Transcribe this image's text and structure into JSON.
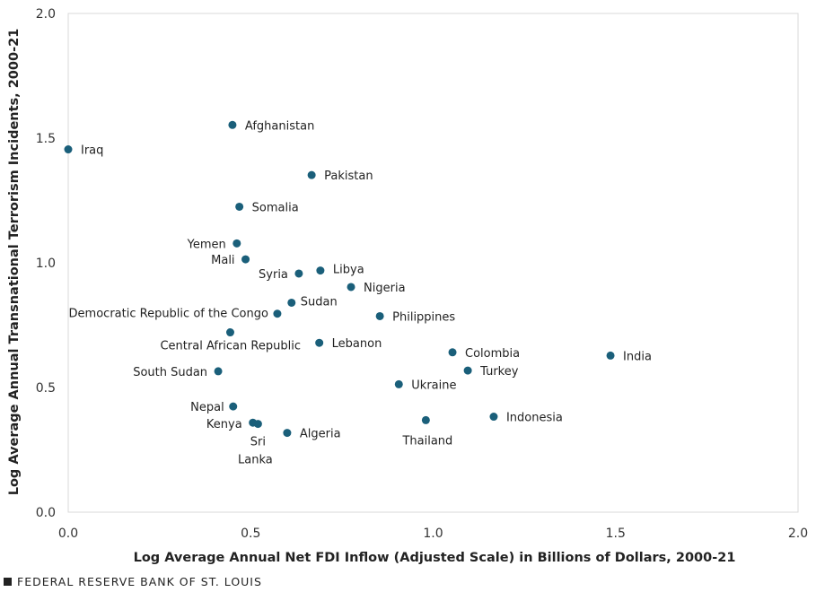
{
  "chart_data": {
    "type": "scatter",
    "xlabel": "Log Average Annual Net FDI Inflow (Adjusted Scale) in Billions of Dollars, 2000-21",
    "ylabel": "Log Average Annual Transnational Terrorism Incidents, 2000-21",
    "xlim": [
      0,
      2
    ],
    "ylim": [
      0,
      2
    ],
    "x_ticks": [
      "0.0",
      "0.5",
      "1.0",
      "1.5",
      "2.0"
    ],
    "y_ticks": [
      "0.0",
      "0.5",
      "1.0",
      "1.5",
      "2.0"
    ],
    "grid": false,
    "marker_color": "#1a5f7a",
    "points": [
      {
        "label": "Iraq",
        "x": 0.0,
        "y": 1.455
      },
      {
        "label": "Afghanistan",
        "x": 0.45,
        "y": 1.553
      },
      {
        "label": "Pakistan",
        "x": 0.667,
        "y": 1.352
      },
      {
        "label": "Somalia",
        "x": 0.469,
        "y": 1.225
      },
      {
        "label": "Yemen",
        "x": 0.462,
        "y": 1.078
      },
      {
        "label": "Mali",
        "x": 0.486,
        "y": 1.014
      },
      {
        "label": "Syria",
        "x": 0.632,
        "y": 0.957
      },
      {
        "label": "Libya",
        "x": 0.691,
        "y": 0.969
      },
      {
        "label": "Nigeria",
        "x": 0.775,
        "y": 0.903
      },
      {
        "label": "Sudan",
        "x": 0.612,
        "y": 0.84
      },
      {
        "label": "Democratic Republic of the Congo",
        "x": 0.573,
        "y": 0.796
      },
      {
        "label": "Philippines",
        "x": 0.854,
        "y": 0.786
      },
      {
        "label": "Central African Republic",
        "x": 0.444,
        "y": 0.721
      },
      {
        "label": "Lebanon",
        "x": 0.688,
        "y": 0.679
      },
      {
        "label": "Colombia",
        "x": 1.053,
        "y": 0.641
      },
      {
        "label": "India",
        "x": 1.486,
        "y": 0.628
      },
      {
        "label": "South Sudan",
        "x": 0.411,
        "y": 0.565
      },
      {
        "label": "Turkey",
        "x": 1.095,
        "y": 0.568
      },
      {
        "label": "Ukraine",
        "x": 0.906,
        "y": 0.513
      },
      {
        "label": "Nepal",
        "x": 0.452,
        "y": 0.424
      },
      {
        "label": "Indonesia",
        "x": 1.166,
        "y": 0.383
      },
      {
        "label": "Thailand",
        "x": 0.98,
        "y": 0.369
      },
      {
        "label": "Kenya",
        "x": 0.506,
        "y": 0.359
      },
      {
        "label": "Sri Lanka",
        "x": 0.52,
        "y": 0.354
      },
      {
        "label": "Algeria",
        "x": 0.6,
        "y": 0.318
      }
    ]
  },
  "footer": {
    "source": "FEDERAL RESERVE BANK OF ST. LOUIS"
  }
}
